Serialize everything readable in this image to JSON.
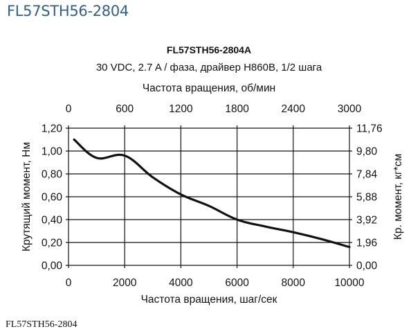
{
  "page": {
    "header": "FL57STH56-2804",
    "footer_caption": "FL57STH56-2804"
  },
  "chart_data": {
    "type": "line",
    "title": "FL57STH56-2804A",
    "subtitle": "30 VDC, 2.7 A / фаза, драйвер H860B, 1/2 шага",
    "xlabel": "Частота вращения, шаг/сек",
    "x2label": "Частота вращения, об/мин",
    "ylabel": "Крутящий момент, Нм",
    "y2label": "Кр. момент, кг*см",
    "xlim": [
      0,
      10000
    ],
    "ylim": [
      0,
      1.2
    ],
    "x_ticks": [
      "0",
      "2000",
      "4000",
      "6000",
      "8000",
      "10000"
    ],
    "x2_ticks": [
      "0",
      "600",
      "1200",
      "1800",
      "2400",
      "3000"
    ],
    "y_ticks": [
      "0,00",
      "0,20",
      "0,40",
      "0,60",
      "0,80",
      "1,00",
      "1,20"
    ],
    "y2_ticks": [
      "0,00",
      "1,96",
      "3,92",
      "5,88",
      "7,84",
      "9,80",
      "11,76"
    ],
    "grid": true,
    "legend": null,
    "series": [
      {
        "name": "FL57STH56-2804A",
        "color": "#111111",
        "x": [
          200,
          1000,
          2000,
          3000,
          4000,
          5000,
          6000,
          7000,
          8000,
          9000,
          10000
        ],
        "values": [
          1.1,
          0.94,
          0.96,
          0.77,
          0.62,
          0.52,
          0.4,
          0.34,
          0.29,
          0.23,
          0.16
        ]
      }
    ]
  }
}
